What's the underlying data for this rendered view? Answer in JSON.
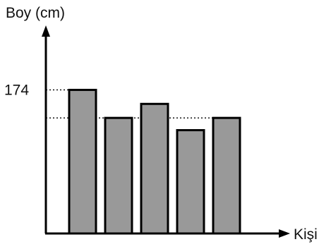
{
  "chart_data": {
    "type": "bar",
    "xlabel": "Kişi",
    "ylabel": "Boy (cm)",
    "categories": [
      "",
      "",
      "",
      "",
      ""
    ],
    "values": [
      174,
      158,
      166,
      151,
      158
    ],
    "guides": [
      174,
      158
    ],
    "tick_labels": [
      {
        "value": 174,
        "label": "174"
      }
    ],
    "ylim": [
      92,
      206
    ],
    "grid": false,
    "bar_color": "#999999",
    "axis_color": "#000000"
  }
}
